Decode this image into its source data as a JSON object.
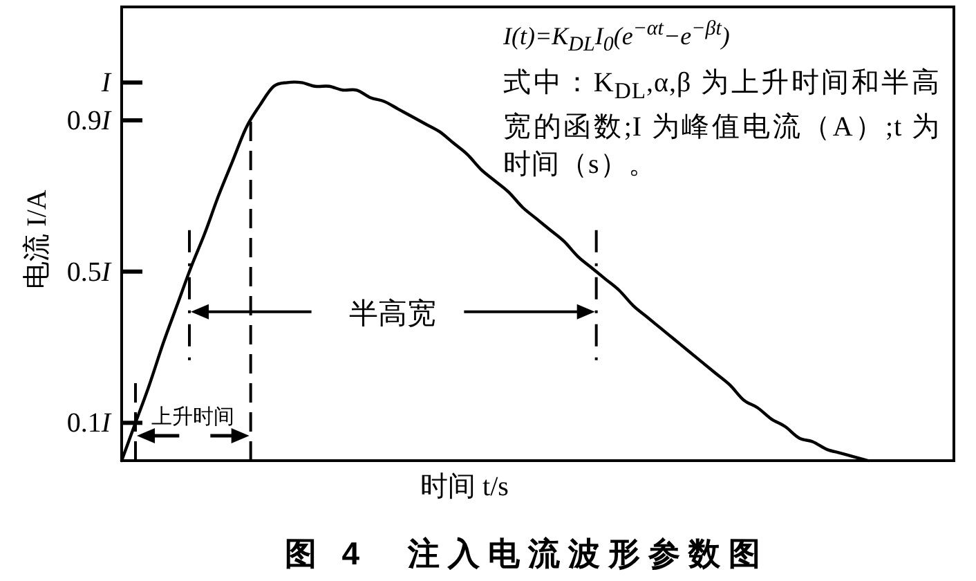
{
  "chart_data": {
    "type": "line",
    "title": "图 4　注入电流波形参数图",
    "xlabel": "时间 t/s",
    "ylabel": "电流 I/A",
    "annotations": [
      "I(t)=K$_{DL}$I$_{0}$(e$^{−αt}$−e$^{−βt}$)",
      "式中：K$_{DL}$,α,β 为上升时间和半高宽的函数;I 为峰值电流（A）;t 为时间（s）。",
      "上升时间",
      "半高宽"
    ],
    "categories": [
      null,
      null,
      null,
      null,
      null,
      null,
      null,
      null,
      null,
      null,
      null,
      null,
      null,
      null,
      null,
      null,
      null,
      null,
      null,
      null,
      null,
      null,
      null,
      null,
      null,
      null,
      null,
      null,
      null,
      null,
      null,
      null,
      null,
      null,
      null,
      null,
      null,
      null,
      null,
      null,
      null,
      null,
      null,
      null,
      null,
      null,
      null,
      null,
      null,
      null,
      null,
      null,
      null,
      null,
      null,
      null,
      null,
      null,
      null,
      null,
      null
    ],
    "series": [
      {
        "color": "#000000",
        "values": [
          0,
          0.1,
          0.2,
          0.31,
          0.41,
          0.51,
          0.6,
          0.7,
          0.79,
          0.88,
          0.94,
          0.99,
          1.0,
          1.0,
          0.99,
          0.99,
          0.98,
          0.98,
          0.96,
          0.95,
          0.93,
          0.91,
          0.89,
          0.87,
          0.84,
          0.81,
          0.77,
          0.74,
          0.71,
          0.67,
          0.64,
          0.61,
          0.58,
          0.54,
          0.51,
          0.48,
          0.45,
          0.41,
          0.38,
          0.35,
          0.32,
          0.29,
          0.26,
          0.23,
          0.2,
          0.16,
          0.14,
          0.11,
          0.09,
          0.06,
          0.05,
          0.03,
          0.02,
          0.01,
          0,
          null,
          null,
          null,
          null,
          null,
          null
        ]
      }
    ],
    "ylim": [
      0,
      1.2
    ],
    "yticks": [
      {
        "value": 0.1,
        "label": "0.1I"
      },
      {
        "value": 0.5,
        "label": "0.5I"
      },
      {
        "value": 0.9,
        "label": "0.9I"
      },
      {
        "value": 1,
        "label": "I"
      }
    ],
    "tick_labels": "y"
  }
}
